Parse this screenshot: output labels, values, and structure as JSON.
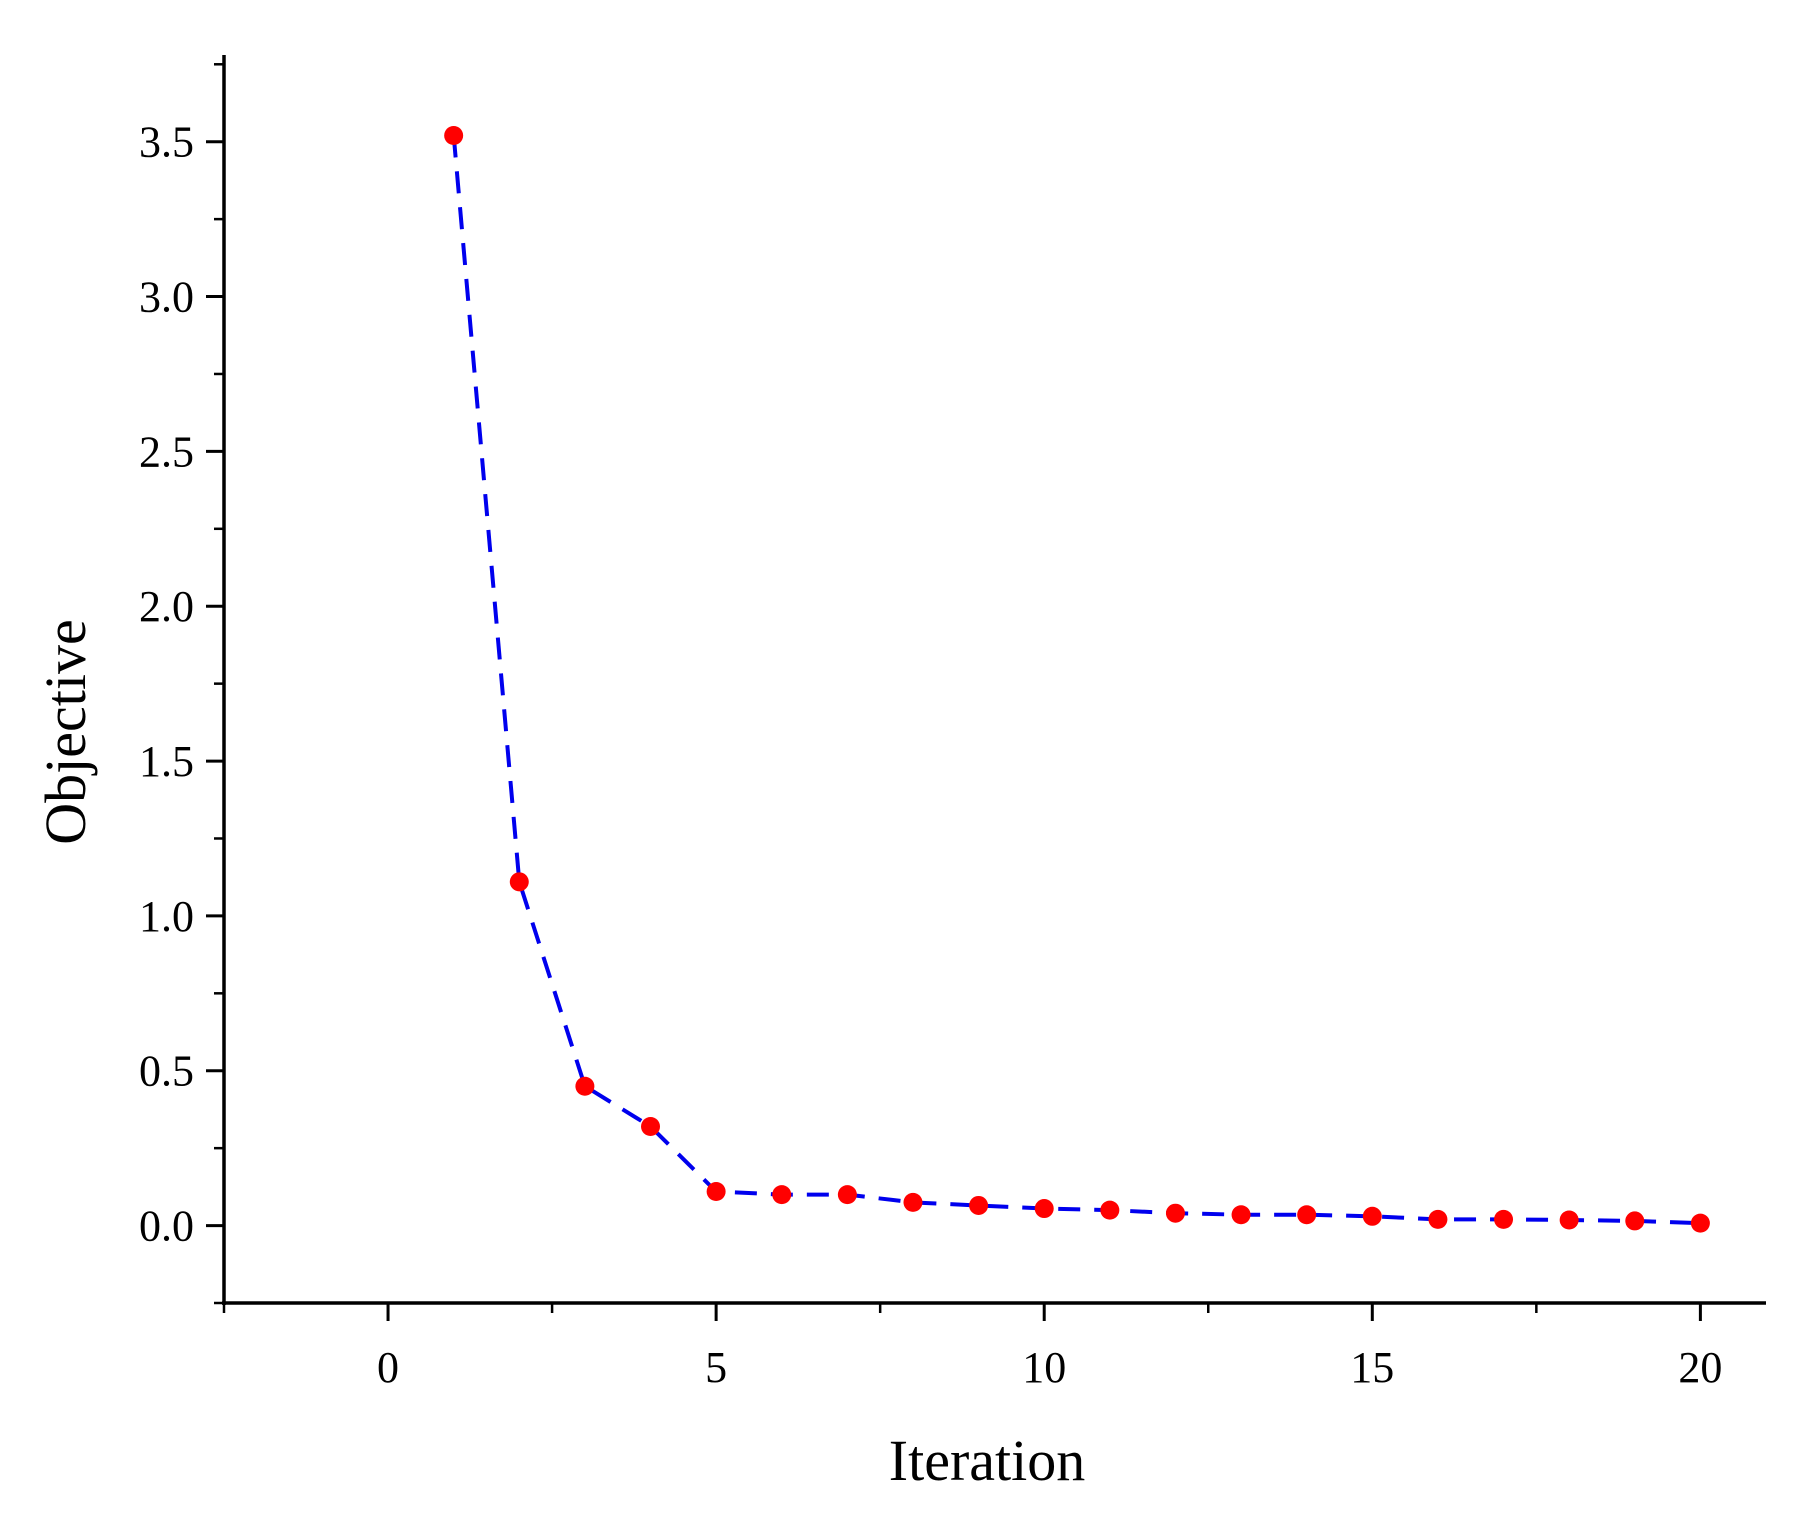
{
  "chart_data": {
    "type": "line",
    "xlabel": "Iteration",
    "ylabel": "Objective",
    "xlim": [
      -2.5,
      21
    ],
    "ylim": [
      -0.25,
      3.78
    ],
    "x_ticks": [
      0,
      5,
      10,
      15,
      20
    ],
    "x_tick_labels": [
      "0",
      "5",
      "10",
      "15",
      "20"
    ],
    "y_ticks": [
      0.0,
      0.5,
      1.0,
      1.5,
      2.0,
      2.5,
      3.0,
      3.5
    ],
    "y_tick_labels": [
      "0.0",
      "0.5",
      "1.0",
      "1.5",
      "2.0",
      "2.5",
      "3.0",
      "3.5"
    ],
    "x_minor_step": 2.5,
    "y_minor_step": 0.25,
    "grid": false,
    "legend": "none",
    "line_style": "dashed",
    "line_color": "#0000ee",
    "marker_color": "#ff0000",
    "series": [
      {
        "x": [
          1,
          2,
          3,
          4,
          5,
          6,
          7,
          8,
          9,
          10,
          11,
          12,
          13,
          14,
          15,
          16,
          17,
          18,
          19,
          20
        ],
        "y": [
          3.52,
          1.11,
          0.45,
          0.32,
          0.11,
          0.1,
          0.1,
          0.075,
          0.065,
          0.055,
          0.05,
          0.04,
          0.035,
          0.035,
          0.03,
          0.02,
          0.02,
          0.018,
          0.015,
          0.008
        ]
      }
    ]
  }
}
